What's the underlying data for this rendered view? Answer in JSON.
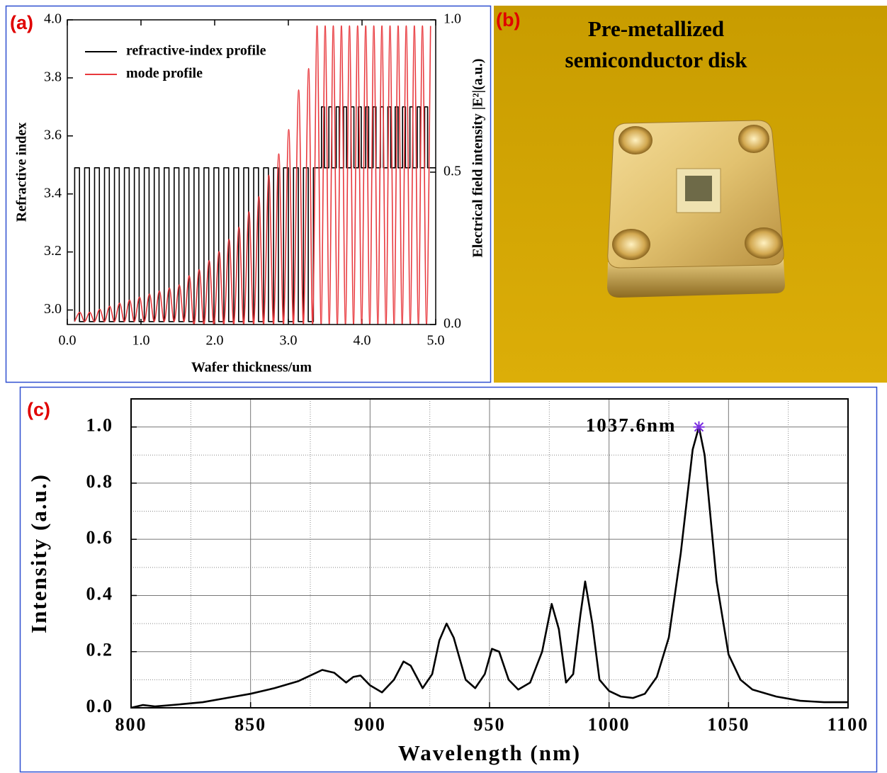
{
  "chart_data": [
    {
      "type": "line",
      "panel_label": "(a)",
      "xlabel": "Wafer thickness/um",
      "ylabel": "Refractive index",
      "y2label": "Electrical field intensity |E²|(a.u.)",
      "xlim": [
        0,
        5
      ],
      "xticks": [
        {
          "value": 0,
          "label": "0.0"
        },
        {
          "value": 1,
          "label": "1.0"
        },
        {
          "value": 2,
          "label": "2.0"
        },
        {
          "value": 3,
          "label": "3.0"
        },
        {
          "value": 4,
          "label": "4.0"
        },
        {
          "value": 5,
          "label": "5.0"
        }
      ],
      "ylim": [
        2.95,
        4.0
      ],
      "yticks": [
        {
          "value": 3,
          "label": "3.0"
        },
        3.2,
        3.4,
        3.6,
        3.8,
        {
          "value": 4,
          "label": "4.0"
        }
      ],
      "y2lim": [
        0,
        1
      ],
      "y2ticks": [
        {
          "value": 0,
          "label": "0.0"
        },
        0.5,
        {
          "value": 1,
          "label": "1.0"
        }
      ],
      "legend": "upper left",
      "series": [
        {
          "name": "refractive-index profile",
          "color": "#000000",
          "x": [
            0.1,
            0.1,
            0.165,
            0.165,
            0.235,
            0.235,
            0.3,
            0.3,
            0.37,
            0.37,
            0.435,
            0.435,
            0.505,
            0.505,
            0.57,
            0.57,
            0.64,
            0.64,
            0.705,
            0.705,
            0.775,
            0.775,
            0.84,
            0.84,
            0.91,
            0.91,
            0.975,
            0.975,
            1.045,
            1.045,
            1.11,
            1.11,
            1.18,
            1.18,
            1.245,
            1.245,
            1.315,
            1.315,
            1.38,
            1.38,
            1.45,
            1.45,
            1.515,
            1.515,
            1.585,
            1.585,
            1.65,
            1.65,
            1.72,
            1.72,
            1.785,
            1.785,
            1.855,
            1.855,
            1.92,
            1.92,
            1.99,
            1.99,
            2.055,
            2.055,
            2.125,
            2.125,
            2.19,
            2.19,
            2.26,
            2.26,
            2.325,
            2.325,
            2.395,
            2.395,
            2.46,
            2.46,
            2.53,
            2.53,
            2.595,
            2.595,
            2.665,
            2.665,
            2.73,
            2.73,
            2.8,
            2.8,
            2.865,
            2.865,
            2.935,
            2.935,
            3.0,
            3.0,
            3.07,
            3.07,
            3.135,
            3.135,
            3.205,
            3.205,
            3.27,
            3.27,
            3.34,
            3.34,
            3.45,
            3.45,
            3.49,
            3.49,
            3.55,
            3.55,
            3.59,
            3.59,
            3.65,
            3.65,
            3.69,
            3.69,
            3.75,
            3.75,
            3.79,
            3.79,
            3.85,
            3.85,
            3.89,
            3.89,
            3.95,
            3.95,
            3.99,
            3.99,
            4.05,
            4.05,
            4.09,
            4.09,
            4.15,
            4.15,
            4.19,
            4.19,
            4.25,
            4.25,
            4.29,
            4.29,
            4.35,
            4.35,
            4.39,
            4.39,
            4.45,
            4.45,
            4.49,
            4.49,
            4.55,
            4.55,
            4.59,
            4.59,
            4.65,
            4.65,
            4.69,
            4.69,
            4.75,
            4.75,
            4.79,
            4.79,
            4.85,
            4.85,
            4.89,
            4.89,
            5.0
          ],
          "values": [
            2.96,
            3.49,
            3.49,
            2.96,
            2.96,
            3.49,
            3.49,
            2.96,
            2.96,
            3.49,
            3.49,
            2.96,
            2.96,
            3.49,
            3.49,
            2.96,
            2.96,
            3.49,
            3.49,
            2.96,
            2.96,
            3.49,
            3.49,
            2.96,
            2.96,
            3.49,
            3.49,
            2.96,
            2.96,
            3.49,
            3.49,
            2.96,
            2.96,
            3.49,
            3.49,
            2.96,
            2.96,
            3.49,
            3.49,
            2.96,
            2.96,
            3.49,
            3.49,
            2.96,
            2.96,
            3.49,
            3.49,
            2.96,
            2.96,
            3.49,
            3.49,
            2.96,
            2.96,
            3.49,
            3.49,
            2.96,
            2.96,
            3.49,
            3.49,
            2.96,
            2.96,
            3.49,
            3.49,
            2.96,
            2.96,
            3.49,
            3.49,
            2.96,
            2.96,
            3.49,
            3.49,
            2.96,
            2.96,
            3.49,
            3.49,
            2.96,
            2.96,
            3.49,
            3.49,
            2.96,
            2.96,
            3.49,
            3.49,
            2.96,
            2.96,
            3.49,
            3.49,
            2.96,
            2.96,
            3.49,
            3.49,
            2.96,
            2.96,
            3.49,
            3.49,
            2.96,
            2.96,
            3.49,
            3.49,
            3.7,
            3.7,
            3.49,
            3.49,
            3.7,
            3.7,
            3.49,
            3.49,
            3.7,
            3.7,
            3.49,
            3.49,
            3.7,
            3.7,
            3.49,
            3.49,
            3.7,
            3.7,
            3.49,
            3.49,
            3.7,
            3.7,
            3.49,
            3.49,
            3.7,
            3.7,
            3.49,
            3.49,
            3.7,
            3.7,
            3.49,
            3.49,
            3.7,
            3.7,
            3.49,
            3.49,
            3.7,
            3.7,
            3.49,
            3.49,
            3.7,
            3.7,
            3.49,
            3.49,
            3.7,
            3.7,
            3.49,
            3.49,
            3.7,
            3.7,
            3.49,
            3.49,
            3.7,
            3.7,
            3.49,
            3.49,
            3.7,
            3.7,
            3.49,
            3.49
          ]
        },
        {
          "name": "mode profile",
          "color": "#e8383d",
          "axis": "y2",
          "x": [
            0.1,
            0.17,
            0.235,
            0.305,
            0.37,
            0.44,
            0.505,
            0.575,
            0.64,
            0.71,
            0.775,
            0.845,
            0.91,
            0.98,
            1.045,
            1.115,
            1.18,
            1.25,
            1.315,
            1.385,
            1.45,
            1.52,
            1.585,
            1.655,
            1.72,
            1.79,
            1.855,
            1.925,
            1.99,
            2.06,
            2.125,
            2.195,
            2.26,
            2.33,
            2.395,
            2.465,
            2.53,
            2.6,
            2.665,
            2.735,
            2.8,
            2.87,
            2.935,
            3.005,
            3.07,
            3.14,
            3.205,
            3.275,
            3.33,
            3.39,
            3.445,
            3.5,
            3.555,
            3.61,
            3.665,
            3.72,
            3.775,
            3.83,
            3.885,
            3.94,
            3.995,
            4.05,
            4.105,
            4.16,
            4.215,
            4.27,
            4.325,
            4.38,
            4.435,
            4.49,
            4.545,
            4.6,
            4.655,
            4.71,
            4.765,
            4.82,
            4.875,
            4.93
          ],
          "values": [
            0.01,
            0.04,
            0.01,
            0.04,
            0.01,
            0.05,
            0.01,
            0.06,
            0.01,
            0.07,
            0.01,
            0.08,
            0.01,
            0.09,
            0.01,
            0.1,
            0.01,
            0.11,
            0.01,
            0.12,
            0.01,
            0.13,
            0.01,
            0.16,
            0,
            0.18,
            0,
            0.21,
            0,
            0.24,
            0,
            0.28,
            0,
            0.32,
            0,
            0.37,
            0,
            0.42,
            0,
            0.49,
            0,
            0.56,
            0,
            0.64,
            0,
            0.77,
            0,
            0.84,
            0,
            0.98,
            0,
            0.98,
            0,
            0.98,
            0,
            0.98,
            0,
            0.98,
            0,
            0.98,
            0,
            0.98,
            0,
            0.98,
            0,
            0.98,
            0,
            0.98,
            0,
            0.98,
            0,
            0.98,
            0,
            0.98,
            0,
            0.98,
            0,
            0.98
          ]
        }
      ]
    },
    {
      "type": "line",
      "panel_label": "(c)",
      "xlabel": "Wavelength (nm)",
      "ylabel": "Intensity (a.u.)",
      "color": "#000000",
      "grid": true,
      "xlim": [
        800,
        1100
      ],
      "xticks": [
        800,
        850,
        900,
        950,
        1000,
        1050,
        1100
      ],
      "minor_xticks": [
        825,
        875,
        925,
        975,
        1025,
        1075
      ],
      "ylim": [
        0,
        1.1
      ],
      "yticks": [
        {
          "value": 0,
          "label": "0.0"
        },
        0.2,
        0.4,
        0.6,
        0.8,
        {
          "value": 1,
          "label": "1.0"
        }
      ],
      "minor_yticks": [
        0.1,
        0.3,
        0.5,
        0.7,
        0.9
      ],
      "x": [
        800,
        805,
        810,
        820,
        830,
        840,
        850,
        860,
        870,
        875,
        880,
        885,
        890,
        893,
        896,
        900,
        905,
        910,
        914,
        917,
        922,
        926,
        929,
        932,
        935,
        940,
        944,
        948,
        951,
        954,
        958,
        962,
        967,
        972,
        976,
        979,
        982,
        985,
        988,
        990,
        993,
        996,
        1000,
        1005,
        1010,
        1015,
        1020,
        1025,
        1030,
        1035,
        1037.6,
        1040,
        1045,
        1050,
        1055,
        1060,
        1070,
        1080,
        1090,
        1100
      ],
      "values": [
        0.0,
        0.01,
        0.005,
        0.012,
        0.02,
        0.035,
        0.05,
        0.07,
        0.095,
        0.115,
        0.135,
        0.125,
        0.09,
        0.11,
        0.115,
        0.08,
        0.055,
        0.1,
        0.165,
        0.15,
        0.07,
        0.12,
        0.24,
        0.3,
        0.25,
        0.1,
        0.07,
        0.12,
        0.21,
        0.2,
        0.1,
        0.065,
        0.09,
        0.2,
        0.37,
        0.28,
        0.09,
        0.12,
        0.33,
        0.45,
        0.3,
        0.1,
        0.06,
        0.04,
        0.035,
        0.05,
        0.11,
        0.25,
        0.55,
        0.92,
        1.0,
        0.9,
        0.45,
        0.19,
        0.1,
        0.065,
        0.04,
        0.025,
        0.02,
        0.02
      ],
      "annotations": [
        {
          "text": "1037.6nm",
          "x": 1037.6,
          "y": 1.0,
          "color": "#7b2fe0"
        }
      ]
    }
  ],
  "photo": {
    "panel_label": "(b)",
    "caption": [
      "Pre-metallized",
      "semiconductor disk"
    ]
  }
}
